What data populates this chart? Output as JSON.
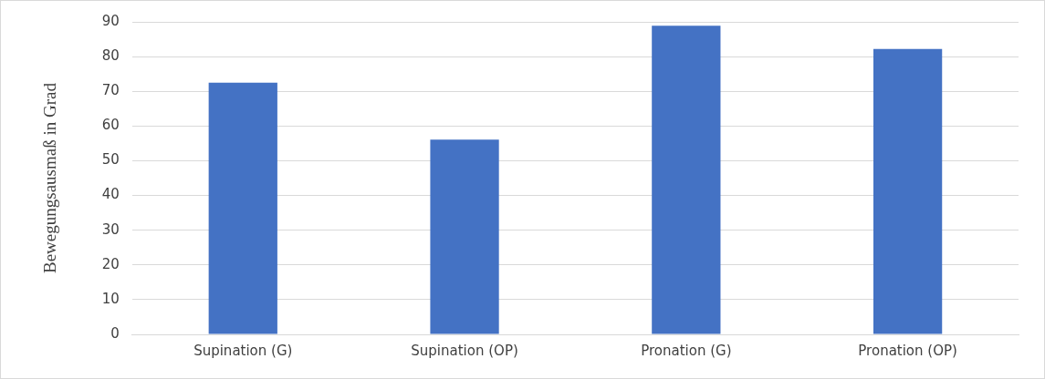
{
  "chart_data": {
    "type": "bar",
    "ylabel": "Bewegungsausmaß in Grad",
    "categories": [
      "Supination (G)",
      "Supination (OP)",
      "Pronation (G)",
      "Pronation (OP)"
    ],
    "values": [
      72.5,
      56.1,
      88.9,
      82.2
    ],
    "color": "#4472c4",
    "ylim": [
      0,
      90
    ],
    "yticks": [
      0,
      10,
      20,
      30,
      40,
      50,
      60,
      70,
      80,
      90
    ],
    "grid": "y",
    "legend": false
  }
}
